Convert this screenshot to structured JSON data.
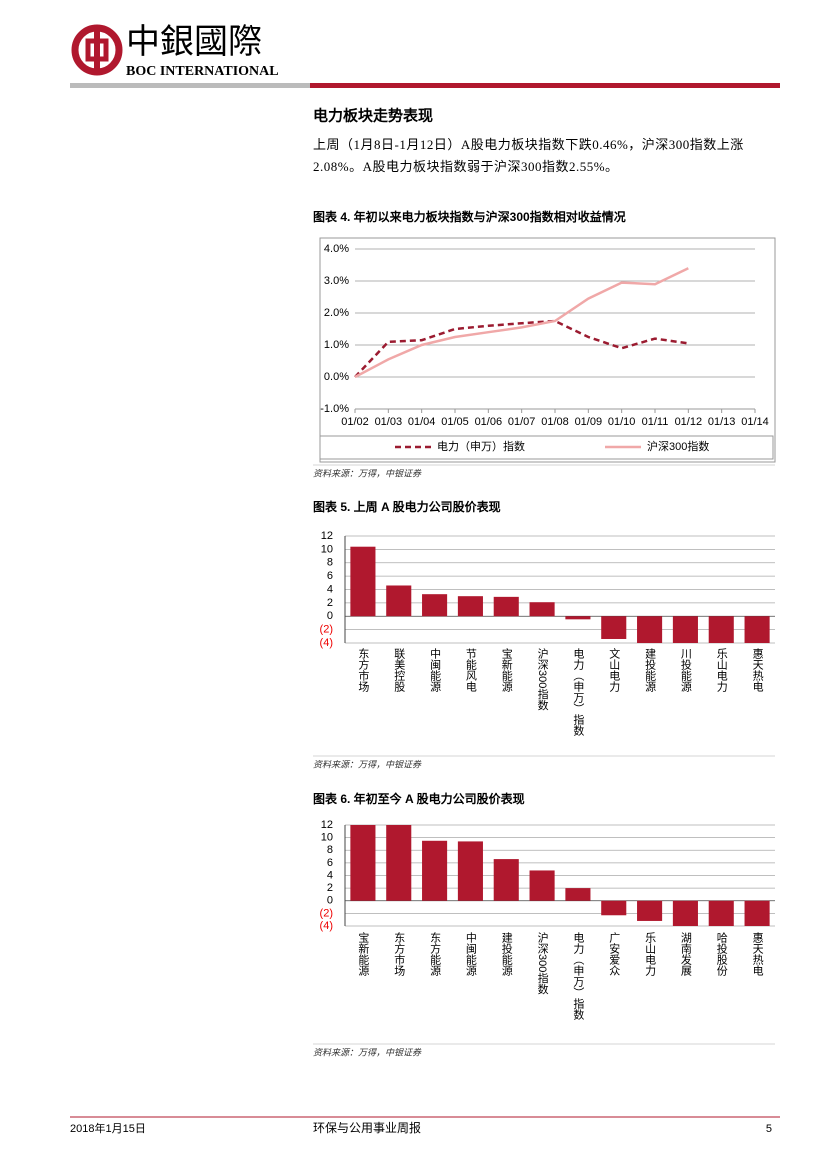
{
  "header": {
    "logo_cn": "中銀國際",
    "logo_en": "BOC INTERNATIONAL"
  },
  "section_title": "电力板块走势表现",
  "paragraph": "上周（1月8日-1月12日）A股电力板块指数下跌0.46%，沪深300指数上涨2.08%。A股电力板块指数弱于沪深300指数2.55%。",
  "chart_data": [
    {
      "type": "line",
      "title": "图表 4. 年初以来电力板块指数与沪深300指数相对收益情况",
      "categories": [
        "01/02",
        "01/03",
        "01/04",
        "01/05",
        "01/06",
        "01/07",
        "01/08",
        "01/09",
        "01/10",
        "01/11",
        "01/12",
        "01/13",
        "01/14"
      ],
      "series": [
        {
          "name": "电力（申万）指数",
          "color": "#9b1b30",
          "style": "dashed",
          "values": [
            0.0,
            1.1,
            1.15,
            1.5,
            1.6,
            1.68,
            1.75,
            1.25,
            0.9,
            1.2,
            1.05,
            null,
            null
          ]
        },
        {
          "name": "沪深300指数",
          "color": "#f0a8a8",
          "style": "solid",
          "values": [
            0.0,
            0.55,
            1.0,
            1.25,
            1.4,
            1.55,
            1.75,
            2.45,
            2.95,
            2.9,
            3.4,
            null,
            null
          ]
        }
      ],
      "ylim": [
        -1,
        4
      ],
      "yticks": [
        {
          "value": 4,
          "label": "4.0%"
        },
        {
          "value": 3,
          "label": "3.0%"
        },
        {
          "value": 2,
          "label": "2.0%"
        },
        {
          "value": 1,
          "label": "1.0%"
        },
        {
          "value": 0,
          "label": "0.0%"
        },
        {
          "value": -1,
          "label": "-1.0%"
        }
      ],
      "grid": true,
      "legend": "bottom",
      "source": "资料来源：万得，中银证券"
    },
    {
      "type": "bar",
      "title": "图表 5. 上周 A 股电力公司股价表现",
      "categories": [
        "东方市场",
        "联美控股",
        "中闽能源",
        "节能风电",
        "宝新能源",
        "沪深300指数",
        "电力（申万）指数",
        "文山电力",
        "建投能源",
        "川投能源",
        "乐山电力",
        "惠天热电"
      ],
      "values": [
        10.4,
        4.6,
        3.3,
        3.0,
        2.9,
        2.1,
        -0.46,
        -3.4,
        -4.0,
        -4.0,
        -4.0,
        -4.0
      ],
      "color": "#b0182e",
      "ylim": [
        -4,
        12
      ],
      "yticks": [
        12,
        10,
        8,
        6,
        4,
        2,
        0,
        {
          "value": -2,
          "label": "(2)"
        },
        {
          "value": -4,
          "label": "(4)"
        }
      ],
      "grid": true,
      "source": "资料来源：万得，中银证券"
    },
    {
      "type": "bar",
      "title": "图表 6. 年初至今 A 股电力公司股价表现",
      "categories": [
        "宝新能源",
        "东方市场",
        "东方能源",
        "中闽能源",
        "建投能源",
        "沪深300指数",
        "电力（申万）指数",
        "广安爱众",
        "乐山电力",
        "湖南发展",
        "哈投股份",
        "惠天热电"
      ],
      "values": [
        12.0,
        12.0,
        9.5,
        9.4,
        6.6,
        4.8,
        2.0,
        -2.3,
        -3.2,
        -4.0,
        -4.0,
        -4.0
      ],
      "color": "#b0182e",
      "ylim": [
        -4,
        12
      ],
      "yticks": [
        12,
        10,
        8,
        6,
        4,
        2,
        0,
        {
          "value": -2,
          "label": "(2)"
        },
        {
          "value": -4,
          "label": "(4)"
        }
      ],
      "grid": true,
      "source": "资料来源：万得，中银证券"
    }
  ],
  "footer": {
    "date": "2018年1月15日",
    "report": "环保与公用事业周报",
    "page": "5"
  }
}
